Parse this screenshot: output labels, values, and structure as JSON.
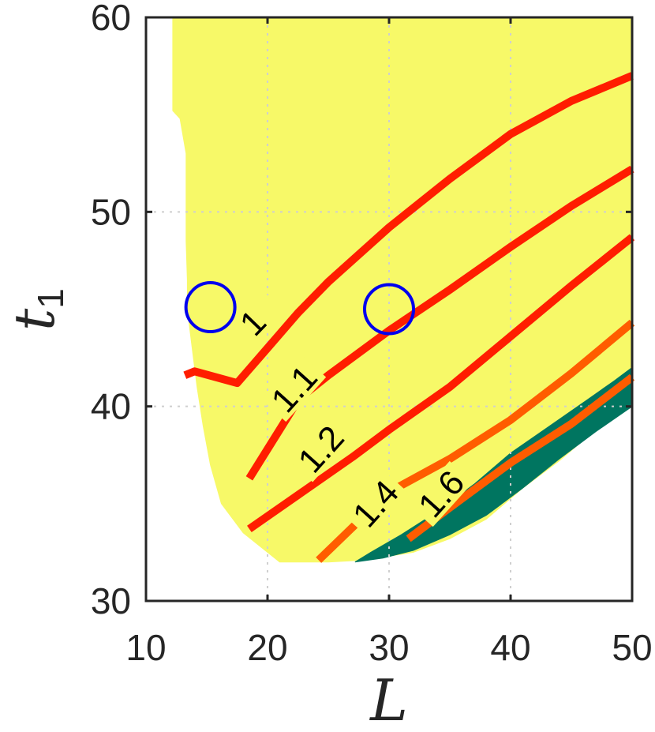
{
  "chart_data": {
    "type": "contour",
    "xlabel": "L",
    "ylabel": "t",
    "ylabel_subscript": "1",
    "xlim": [
      10,
      50
    ],
    "ylim": [
      30,
      60
    ],
    "xticks": [
      "10",
      "20",
      "30",
      "40",
      "50"
    ],
    "yticks": [
      "30",
      "40",
      "50",
      "60"
    ],
    "xtick_values": [
      10,
      20,
      30,
      40,
      50
    ],
    "ytick_values": [
      30,
      40,
      50,
      60
    ],
    "grid": true,
    "colors": {
      "feasible_region": "#f7f968",
      "high_region": "#007560",
      "contour_red": "#ff1d00",
      "contour_orange": "#ff5c00",
      "marker": "#0000ee",
      "axis": "#262626",
      "grid": "#cfcfcf"
    },
    "regions": [
      {
        "name": "feasible",
        "boundary": [
          [
            12.2,
            60
          ],
          [
            50,
            60
          ],
          [
            50,
            40
          ],
          [
            47,
            38.8
          ],
          [
            44,
            37.2
          ],
          [
            41,
            35.8
          ],
          [
            38,
            34.2
          ],
          [
            35,
            33.2
          ],
          [
            32,
            32.5
          ],
          [
            28,
            32.1
          ],
          [
            25,
            32
          ],
          [
            21,
            32
          ],
          [
            18,
            33.5
          ],
          [
            16.2,
            35
          ],
          [
            15.3,
            37
          ],
          [
            14.7,
            39
          ],
          [
            14.2,
            41
          ],
          [
            13.8,
            43
          ],
          [
            13.4,
            45
          ],
          [
            13.4,
            46.5
          ],
          [
            13.3,
            48.5
          ],
          [
            13.3,
            50
          ],
          [
            13.3,
            53
          ],
          [
            12.8,
            54.8
          ],
          [
            12.2,
            55.2
          ]
        ]
      },
      {
        "name": "high",
        "boundary": [
          [
            50,
            42
          ],
          [
            48.5,
            41.3
          ],
          [
            46,
            40.2
          ],
          [
            43,
            38.9
          ],
          [
            40,
            37.6
          ],
          [
            37,
            36
          ],
          [
            34,
            34.6
          ],
          [
            31,
            33.4
          ],
          [
            28.5,
            32.5
          ],
          [
            27.2,
            32
          ],
          [
            29.5,
            32.2
          ],
          [
            32,
            32.6
          ],
          [
            35,
            33.4
          ],
          [
            38,
            34.4
          ],
          [
            41,
            35.8
          ],
          [
            44,
            37.3
          ],
          [
            47,
            38.7
          ],
          [
            50,
            40
          ]
        ]
      }
    ],
    "contours": [
      {
        "level": "1",
        "color": "#ff1d00",
        "points": [
          [
            50,
            57
          ],
          [
            45,
            55.7
          ],
          [
            40,
            54
          ],
          [
            35,
            51.7
          ],
          [
            30,
            49.2
          ],
          [
            25,
            46.4
          ],
          [
            22.5,
            44.8
          ],
          [
            20,
            43
          ],
          [
            17.5,
            41.2
          ],
          [
            14,
            41.8
          ],
          [
            13.2,
            41.6
          ]
        ],
        "label": "1",
        "label_at": [
          18.8,
          44.3
        ],
        "label_rotation": -46
      },
      {
        "level": "1.1",
        "color": "#ff1d00",
        "points": [
          [
            50,
            52.2
          ],
          [
            45,
            50.3
          ],
          [
            40,
            48.2
          ],
          [
            35,
            46
          ],
          [
            30,
            43.9
          ],
          [
            25,
            41.6
          ],
          [
            22.6,
            40.4
          ],
          [
            18.5,
            36.3
          ]
        ],
        "label": "1.1",
        "label_at": [
          22.2,
          40.9
        ],
        "label_rotation": -48
      },
      {
        "level": "1.2",
        "color": "#ff1d00",
        "points": [
          [
            50,
            48.7
          ],
          [
            45,
            46.2
          ],
          [
            40,
            43.6
          ],
          [
            35,
            41
          ],
          [
            30,
            38.8
          ],
          [
            27,
            37.4
          ],
          [
            18.5,
            33.7
          ]
        ],
        "label": "1.2",
        "label_at": [
          24.4,
          37.8
        ],
        "label_rotation": -48
      },
      {
        "level": "1.4",
        "color": "#ff5c00",
        "points": [
          [
            50,
            44.3
          ],
          [
            45,
            41.7
          ],
          [
            40,
            39.3
          ],
          [
            35,
            37.3
          ],
          [
            30,
            35.6
          ],
          [
            24.2,
            32.1
          ]
        ],
        "label": "1.4",
        "label_at": [
          28.9,
          35
        ],
        "label_rotation": -48
      },
      {
        "level": "1.6",
        "color": "#ff5c00",
        "points": [
          [
            50,
            41.5
          ],
          [
            45,
            39.1
          ],
          [
            40,
            37.1
          ],
          [
            35,
            34.8
          ],
          [
            31.6,
            33.2
          ]
        ],
        "label": "1.6",
        "label_at": [
          34.3,
          35.5
        ],
        "label_rotation": -48
      }
    ],
    "markers": [
      {
        "x": 15.3,
        "y": 45.1,
        "shape": "circle"
      },
      {
        "x": 30,
        "y": 45,
        "shape": "circle"
      }
    ]
  }
}
